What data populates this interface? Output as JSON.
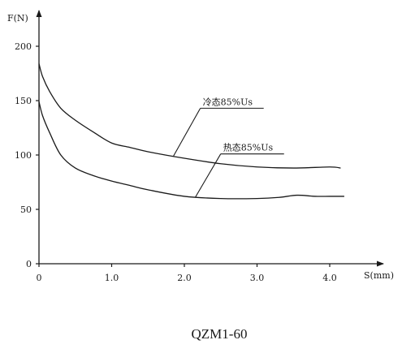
{
  "chart_data": {
    "type": "line",
    "xlabel": "S(mm)",
    "ylabel": "F(N)",
    "xlim": [
      0,
      4.4
    ],
    "ylim": [
      0,
      220
    ],
    "x_ticks": [
      {
        "value": 0,
        "label": "0"
      },
      {
        "value": 1,
        "label": "1.0"
      },
      {
        "value": 2,
        "label": "2.0"
      },
      {
        "value": 3,
        "label": "3.0"
      },
      {
        "value": 4,
        "label": "4.0"
      }
    ],
    "y_ticks": [
      {
        "value": 0,
        "label": "0"
      },
      {
        "value": 50,
        "label": "50"
      },
      {
        "value": 100,
        "label": "100"
      },
      {
        "value": 150,
        "label": "150"
      },
      {
        "value": 200,
        "label": "200"
      }
    ],
    "series": [
      {
        "name": "冷态85%Us",
        "x": [
          0,
          0.05,
          0.15,
          0.3,
          0.5,
          0.75,
          1.0,
          1.25,
          1.5,
          2.0,
          2.5,
          3.0,
          3.5,
          4.0,
          4.15
        ],
        "y": [
          184,
          172,
          158,
          143,
          132,
          121,
          111,
          107,
          103,
          97,
          92,
          89,
          88,
          89,
          88
        ]
      },
      {
        "name": "热态85%Us",
        "x": [
          0,
          0.05,
          0.15,
          0.3,
          0.5,
          0.75,
          1.0,
          1.25,
          1.5,
          2.0,
          2.5,
          3.0,
          3.3,
          3.55,
          3.8,
          4.0,
          4.2
        ],
        "y": [
          149,
          136,
          120,
          100,
          88,
          81,
          76,
          72,
          68,
          62,
          60,
          60,
          61,
          63,
          62,
          62,
          62
        ]
      }
    ],
    "annotations": [
      {
        "series": "冷态85%Us",
        "text": "冷态85%Us",
        "at_x": 1.85,
        "at_y": 99,
        "label_x": 2.22,
        "label_y": 143
      },
      {
        "series": "热态85%Us",
        "text": "热态85%Us",
        "at_x": 2.15,
        "at_y": 61,
        "label_x": 2.5,
        "label_y": 101
      }
    ],
    "caption": "QZM1-60",
    "grid": false
  }
}
